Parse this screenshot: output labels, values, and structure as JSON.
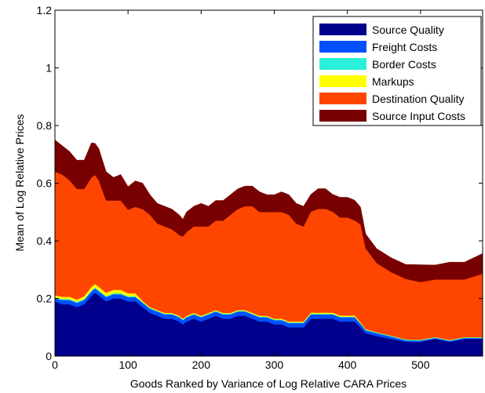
{
  "chart_data": {
    "type": "area",
    "xlabel": "Goods Ranked by Variance of Log Relative CARA Prices",
    "ylabel": "Mean of Log Relative Prices",
    "xlim": [
      0,
      585
    ],
    "ylim": [
      0,
      1.2
    ],
    "xticks": [
      "0",
      "100",
      "200",
      "300",
      "400",
      "500"
    ],
    "xtick_values": [
      0,
      100,
      200,
      300,
      400,
      500
    ],
    "yticks": [
      "0",
      "0.2",
      "0.4",
      "0.6",
      "0.8",
      "1",
      "1.2"
    ],
    "ytick_values": [
      0,
      0.2,
      0.4,
      0.6,
      0.8,
      1.0,
      1.2
    ],
    "grid": false,
    "stacked": true,
    "legend_position": "top-right",
    "x": [
      0,
      10,
      20,
      30,
      40,
      50,
      55,
      60,
      70,
      80,
      90,
      100,
      110,
      120,
      130,
      140,
      150,
      160,
      170,
      175,
      180,
      190,
      200,
      210,
      220,
      230,
      240,
      250,
      260,
      270,
      280,
      290,
      300,
      310,
      320,
      330,
      340,
      350,
      360,
      370,
      380,
      390,
      400,
      410,
      418,
      425,
      440,
      460,
      480,
      500,
      520,
      540,
      560,
      585
    ],
    "series": [
      {
        "name": "Source Quality",
        "color": "#00008c",
        "values": [
          0.19,
          0.18,
          0.18,
          0.17,
          0.18,
          0.21,
          0.22,
          0.21,
          0.19,
          0.2,
          0.2,
          0.19,
          0.19,
          0.17,
          0.15,
          0.14,
          0.13,
          0.13,
          0.12,
          0.11,
          0.12,
          0.13,
          0.12,
          0.13,
          0.14,
          0.13,
          0.13,
          0.14,
          0.14,
          0.13,
          0.12,
          0.12,
          0.11,
          0.11,
          0.1,
          0.1,
          0.1,
          0.13,
          0.13,
          0.13,
          0.13,
          0.12,
          0.12,
          0.12,
          0.1,
          0.08,
          0.07,
          0.06,
          0.05,
          0.05,
          0.06,
          0.05,
          0.06,
          0.06
        ]
      },
      {
        "name": "Freight Costs",
        "color": "#0050ff",
        "values": [
          0.01,
          0.015,
          0.015,
          0.015,
          0.015,
          0.015,
          0.015,
          0.015,
          0.015,
          0.015,
          0.015,
          0.015,
          0.015,
          0.015,
          0.015,
          0.015,
          0.015,
          0.015,
          0.015,
          0.015,
          0.015,
          0.015,
          0.015,
          0.015,
          0.015,
          0.015,
          0.015,
          0.015,
          0.015,
          0.015,
          0.015,
          0.015,
          0.015,
          0.015,
          0.015,
          0.015,
          0.015,
          0.015,
          0.015,
          0.015,
          0.015,
          0.015,
          0.015,
          0.015,
          0.012,
          0.01,
          0.01,
          0.008,
          0.005,
          0.004,
          0.003,
          0.003,
          0.003,
          0.003
        ]
      },
      {
        "name": "Border Costs",
        "color": "#2af0d8",
        "values": [
          0.003,
          0.003,
          0.003,
          0.003,
          0.003,
          0.003,
          0.003,
          0.003,
          0.003,
          0.003,
          0.003,
          0.003,
          0.003,
          0.002,
          0.002,
          0.002,
          0.002,
          0.002,
          0.002,
          0.002,
          0.002,
          0.002,
          0.002,
          0.002,
          0.002,
          0.002,
          0.002,
          0.002,
          0.002,
          0.002,
          0.002,
          0.002,
          0.002,
          0.002,
          0.002,
          0.002,
          0.002,
          0.002,
          0.002,
          0.002,
          0.002,
          0.002,
          0.002,
          0.002,
          0.002,
          0.002,
          0.002,
          0.002,
          0.002,
          0.002,
          0.002,
          0.002,
          0.002,
          0.002
        ]
      },
      {
        "name": "Markups",
        "color": "#ffff00",
        "values": [
          0.008,
          0.008,
          0.008,
          0.008,
          0.01,
          0.012,
          0.012,
          0.012,
          0.012,
          0.012,
          0.012,
          0.01,
          0.01,
          0.004,
          0.003,
          0.003,
          0.003,
          0.003,
          0.003,
          0.003,
          0.003,
          0.003,
          0.003,
          0.003,
          0.003,
          0.003,
          0.003,
          0.003,
          0.003,
          0.003,
          0.003,
          0.003,
          0.003,
          0.003,
          0.003,
          0.003,
          0.003,
          0.004,
          0.004,
          0.004,
          0.004,
          0.004,
          0.004,
          0.004,
          0.003,
          0.002,
          0.001,
          0.001,
          0.001,
          0.001,
          0.001,
          0.001,
          0.001,
          0.001
        ]
      },
      {
        "name": "Destination Quality",
        "color": "#ff4600",
        "values": [
          0.429,
          0.424,
          0.404,
          0.384,
          0.372,
          0.38,
          0.378,
          0.37,
          0.32,
          0.31,
          0.31,
          0.29,
          0.3,
          0.319,
          0.32,
          0.3,
          0.3,
          0.29,
          0.28,
          0.285,
          0.29,
          0.3,
          0.31,
          0.3,
          0.31,
          0.32,
          0.34,
          0.35,
          0.36,
          0.37,
          0.36,
          0.36,
          0.37,
          0.37,
          0.37,
          0.34,
          0.33,
          0.35,
          0.36,
          0.36,
          0.35,
          0.34,
          0.34,
          0.33,
          0.34,
          0.28,
          0.24,
          0.22,
          0.21,
          0.2,
          0.2,
          0.21,
          0.2,
          0.22
        ]
      },
      {
        "name": "Source Input Costs",
        "color": "#780000",
        "values": [
          0.11,
          0.1,
          0.1,
          0.1,
          0.1,
          0.12,
          0.11,
          0.11,
          0.1,
          0.08,
          0.09,
          0.08,
          0.09,
          0.09,
          0.07,
          0.07,
          0.07,
          0.07,
          0.07,
          0.06,
          0.07,
          0.07,
          0.08,
          0.07,
          0.07,
          0.07,
          0.07,
          0.07,
          0.07,
          0.07,
          0.07,
          0.06,
          0.06,
          0.07,
          0.07,
          0.07,
          0.07,
          0.06,
          0.07,
          0.07,
          0.06,
          0.07,
          0.07,
          0.07,
          0.06,
          0.05,
          0.05,
          0.05,
          0.05,
          0.06,
          0.05,
          0.06,
          0.06,
          0.07
        ]
      }
    ]
  }
}
